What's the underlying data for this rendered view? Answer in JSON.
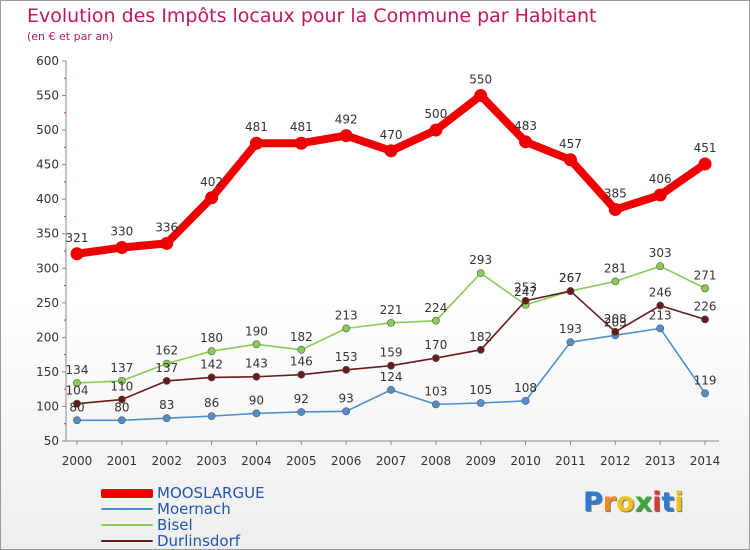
{
  "chart_data": {
    "type": "line",
    "title": "Evolution des Impôts locaux pour la Commune par Habitant",
    "subtitle": "(en € et par an)",
    "x": [
      2000,
      2001,
      2002,
      2003,
      2004,
      2005,
      2006,
      2007,
      2008,
      2009,
      2010,
      2011,
      2012,
      2013,
      2014
    ],
    "x_tick_labels": [
      "2000",
      "2001",
      "2002",
      "2003",
      "2004",
      "2005",
      "2006",
      "2007",
      "2008",
      "2009",
      "2010",
      "2011",
      "2012",
      "2013",
      "2014"
    ],
    "ylim": [
      50,
      600
    ],
    "y_ticks": [
      50,
      100,
      150,
      200,
      250,
      300,
      350,
      400,
      450,
      500,
      550,
      600
    ],
    "grid": false,
    "legend_position": "bottom-left",
    "series": [
      {
        "name": "MOOSLARGUE",
        "color": "#ee0000",
        "values": [
          321,
          330,
          336,
          402,
          481,
          481,
          492,
          470,
          500,
          550,
          483,
          457,
          385,
          406,
          451
        ],
        "labels": [
          "321",
          "330",
          "336",
          "402",
          "481",
          "481",
          "492",
          "470",
          "500",
          "550",
          "483",
          "457",
          "385",
          "406",
          "451"
        ]
      },
      {
        "name": "Moernach",
        "color": "#4f8fcc",
        "values": [
          80,
          80,
          83,
          86,
          90,
          92,
          93,
          124,
          103,
          105,
          108,
          193,
          203,
          213,
          119
        ],
        "labels": [
          "80",
          "80",
          "83",
          "86",
          "90",
          "92",
          "93",
          "124",
          "103",
          "105",
          "108",
          "193",
          "203",
          "213",
          "119"
        ]
      },
      {
        "name": "Bisel",
        "color": "#88cc55",
        "values": [
          134,
          137,
          162,
          180,
          190,
          182,
          213,
          221,
          224,
          293,
          247,
          267,
          281,
          303,
          271
        ],
        "labels": [
          "134",
          "137",
          "162",
          "180",
          "190",
          "182",
          "213",
          "221",
          "224",
          "293",
          "247",
          "267",
          "281",
          "303",
          "271"
        ]
      },
      {
        "name": "Durlinsdorf",
        "color": "#6b1a1a",
        "values": [
          104,
          110,
          137,
          142,
          143,
          146,
          153,
          159,
          170,
          182,
          253,
          267,
          208,
          246,
          226
        ],
        "labels": [
          "104",
          "110",
          "137",
          "142",
          "143",
          "146",
          "153",
          "159",
          "170",
          "182",
          "253",
          "267",
          "208",
          "246",
          "226"
        ]
      }
    ]
  },
  "legend": {
    "items": [
      {
        "label": "MOOSLARGUE",
        "color": "#ee0000"
      },
      {
        "label": "Moernach",
        "color": "#4f8fcc"
      },
      {
        "label": "Bisel",
        "color": "#88cc55"
      },
      {
        "label": "Durlinsdorf",
        "color": "#6b1a1a"
      }
    ]
  },
  "logo": {
    "letters": [
      "P",
      "r",
      "o",
      "x",
      "i",
      "t",
      "i"
    ],
    "colors": [
      "#2b7bd6",
      "#f08a1c",
      "#f2c11c",
      "#3aa83a",
      "#d63a3a",
      "#2b7bd6",
      "#f2c11c"
    ]
  }
}
